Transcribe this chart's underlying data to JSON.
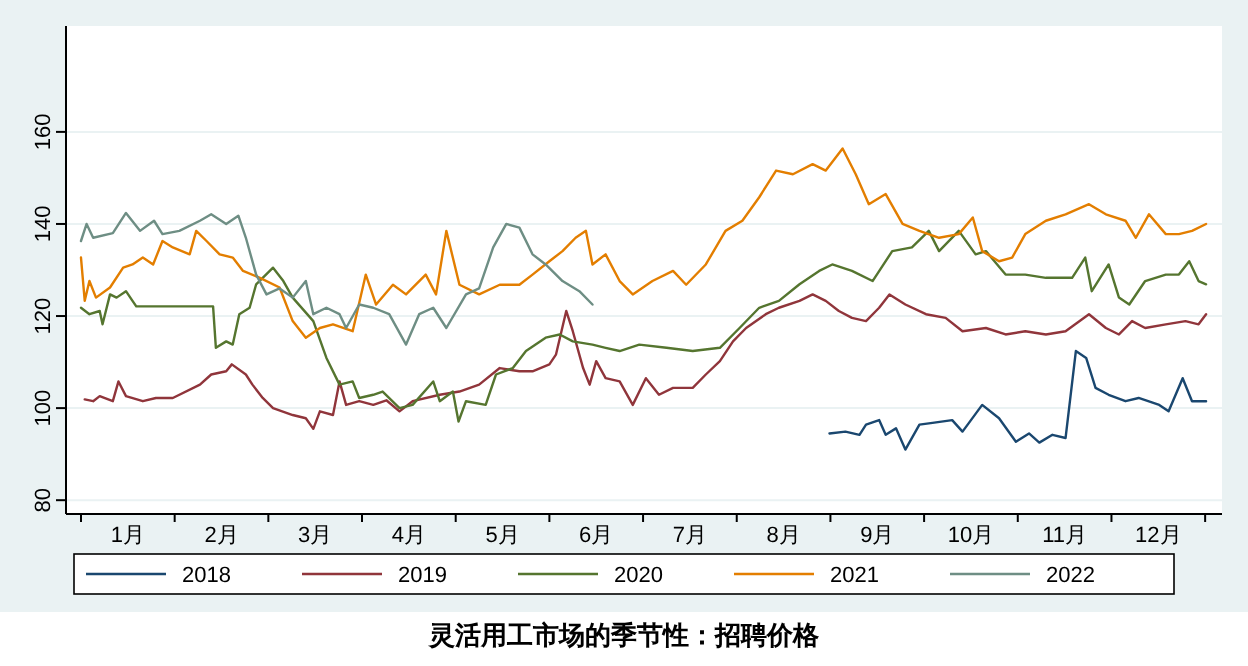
{
  "chart_data": {
    "type": "line",
    "title": "灵活用工市场的季节性：招聘价格",
    "xlim": [
      -0.16,
      12.18
    ],
    "ylim": [
      77,
      183
    ],
    "yticks": [
      80,
      100,
      120,
      140,
      160
    ],
    "xticks": [
      {
        "value": 0,
        "label": null
      },
      {
        "value": 1,
        "label": null
      },
      {
        "value": 2,
        "label": null
      },
      {
        "value": 3,
        "label": null
      },
      {
        "value": 4,
        "label": null
      },
      {
        "value": 5,
        "label": null
      },
      {
        "value": 6,
        "label": null
      },
      {
        "value": 7,
        "label": null
      },
      {
        "value": 8,
        "label": null
      },
      {
        "value": 9,
        "label": null
      },
      {
        "value": 10,
        "label": null
      },
      {
        "value": 11,
        "label": null
      },
      {
        "value": 12,
        "label": null
      },
      {
        "value": 0.5,
        "label": "1月"
      },
      {
        "value": 1.5,
        "label": "2月"
      },
      {
        "value": 2.5,
        "label": "3月"
      },
      {
        "value": 3.5,
        "label": "4月"
      },
      {
        "value": 4.5,
        "label": "5月"
      },
      {
        "value": 5.5,
        "label": "6月"
      },
      {
        "value": 6.5,
        "label": "7月"
      },
      {
        "value": 7.5,
        "label": "8月"
      },
      {
        "value": 8.5,
        "label": "9月"
      },
      {
        "value": 9.5,
        "label": "10月"
      },
      {
        "value": 10.5,
        "label": "11月"
      },
      {
        "value": 11.5,
        "label": "12月"
      }
    ],
    "grid": "y",
    "legend": "bottom",
    "line_style": "solid",
    "marker": "none",
    "series": [
      {
        "name": "2018",
        "color": "#1a476f",
        "x": [
          7.99,
          8.16,
          8.31,
          8.38,
          8.52,
          8.59,
          8.7,
          8.8,
          8.95,
          9.09,
          9.3,
          9.41,
          9.62,
          9.8,
          9.98,
          10.12,
          10.23,
          10.37,
          10.51,
          10.62,
          10.73,
          10.83,
          10.97,
          11.15,
          11.29,
          11.51,
          11.61,
          11.76,
          11.86,
          12.01
        ],
        "values": [
          94.5,
          94.9,
          94.2,
          96.4,
          97.4,
          94.2,
          95.6,
          91,
          96.4,
          96.8,
          97.4,
          94.9,
          100.7,
          97.8,
          92.7,
          94.5,
          92.5,
          94.2,
          93.5,
          112.4,
          110.9,
          104.4,
          102.9,
          101.5,
          102.2,
          100.7,
          99.3,
          106.5,
          101.5,
          101.5
        ]
      },
      {
        "name": "2019",
        "color": "#90353b",
        "x": [
          0.04,
          0.13,
          0.2,
          0.34,
          0.4,
          0.48,
          0.66,
          0.8,
          0.98,
          1.27,
          1.39,
          1.55,
          1.61,
          1.76,
          1.83,
          1.94,
          2.05,
          2.26,
          2.4,
          2.48,
          2.55,
          2.69,
          2.76,
          2.83,
          2.97,
          3.12,
          3.26,
          3.4,
          3.54,
          3.83,
          4.04,
          4.25,
          4.47,
          4.68,
          4.82,
          5.0,
          5.07,
          5.18,
          5.25,
          5.36,
          5.43,
          5.5,
          5.6,
          5.75,
          5.89,
          6.03,
          6.17,
          6.32,
          6.53,
          6.67,
          6.82,
          6.96,
          7.1,
          7.31,
          7.45,
          7.67,
          7.81,
          7.95,
          8.09,
          8.23,
          8.38,
          8.52,
          8.63,
          8.8,
          9.02,
          9.23,
          9.41,
          9.66,
          9.87,
          10.08,
          10.3,
          10.51,
          10.76,
          10.94,
          11.08,
          11.22,
          11.36,
          11.58,
          11.79,
          11.93,
          12.01
        ],
        "values": [
          101.9,
          101.5,
          102.6,
          101.5,
          105.8,
          102.6,
          101.5,
          102.2,
          102.2,
          105.1,
          107.3,
          108,
          109.5,
          107.3,
          105.1,
          102.2,
          100,
          98.5,
          97.8,
          95.5,
          99.3,
          98.5,
          105.8,
          100.7,
          101.5,
          100.7,
          101.7,
          99.3,
          101.5,
          102.9,
          103.6,
          105.1,
          108.7,
          108,
          108,
          109.5,
          111.6,
          121.1,
          116.7,
          108.7,
          105.1,
          110.2,
          106.5,
          105.8,
          100.7,
          106.5,
          102.9,
          104.4,
          104.4,
          107.3,
          110.2,
          114.5,
          117.4,
          120.4,
          121.8,
          123.3,
          124.7,
          123.3,
          121.1,
          119.6,
          118.9,
          121.8,
          124.7,
          122.5,
          120.4,
          119.6,
          116.7,
          117.4,
          116,
          116.7,
          116,
          116.7,
          120.4,
          117.4,
          116,
          118.9,
          117.4,
          118.2,
          118.9,
          118.2,
          120.4
        ]
      },
      {
        "name": "2020",
        "color": "#55752f",
        "x": [
          0,
          0.09,
          0.2,
          0.23,
          0.31,
          0.38,
          0.48,
          0.55,
          0.59,
          1.41,
          1.44,
          1.55,
          1.62,
          1.69,
          1.8,
          1.87,
          2.05,
          2.16,
          2.26,
          2.48,
          2.62,
          2.76,
          2.9,
          2.97,
          3.12,
          3.22,
          3.4,
          3.54,
          3.76,
          3.83,
          3.97,
          4.03,
          4.11,
          4.32,
          4.43,
          4.61,
          4.75,
          4.96,
          5.11,
          5.25,
          5.46,
          5.6,
          5.75,
          5.96,
          6.25,
          6.53,
          6.82,
          7.03,
          7.24,
          7.45,
          7.67,
          7.88,
          8.02,
          8.23,
          8.45,
          8.66,
          8.87,
          9.05,
          9.16,
          9.37,
          9.55,
          9.66,
          9.87,
          10.08,
          10.3,
          10.58,
          10.72,
          10.79,
          10.97,
          11.08,
          11.19,
          11.36,
          11.58,
          11.72,
          11.83,
          11.93,
          12.01
        ],
        "values": [
          121.8,
          120.4,
          121.1,
          118.2,
          124.7,
          124,
          125.4,
          123.3,
          122.1,
          122.1,
          113.1,
          114.5,
          113.8,
          120.4,
          121.8,
          126.9,
          130.5,
          127.6,
          124,
          118.9,
          110.9,
          105.1,
          105.8,
          102.2,
          102.9,
          103.6,
          100,
          100.7,
          105.8,
          101.5,
          103.6,
          97.1,
          101.5,
          100.7,
          107.3,
          108.7,
          112.4,
          115.3,
          116,
          114.5,
          113.8,
          113.1,
          112.4,
          113.8,
          113.1,
          112.4,
          113.1,
          117.4,
          121.8,
          123.3,
          126.9,
          129.8,
          131.2,
          129.8,
          127.6,
          134.1,
          134.9,
          138.5,
          134.1,
          138.5,
          133.4,
          134.1,
          129,
          129,
          128.3,
          128.3,
          132.7,
          125.4,
          131.2,
          124,
          122.5,
          127.6,
          129,
          129,
          131.9,
          127.6,
          126.9
        ]
      },
      {
        "name": "2021",
        "color": "#e37e00",
        "x": [
          0,
          0.04,
          0.09,
          0.16,
          0.31,
          0.45,
          0.55,
          0.66,
          0.77,
          0.87,
          0.98,
          1.16,
          1.23,
          1.34,
          1.48,
          1.62,
          1.73,
          1.91,
          2.12,
          2.26,
          2.4,
          2.55,
          2.69,
          2.9,
          3.04,
          3.15,
          3.33,
          3.47,
          3.68,
          3.79,
          3.9,
          4.04,
          4.25,
          4.47,
          4.68,
          4.82,
          5.0,
          5.14,
          5.28,
          5.39,
          5.46,
          5.6,
          5.75,
          5.89,
          6.1,
          6.32,
          6.46,
          6.67,
          6.88,
          7.06,
          7.24,
          7.42,
          7.6,
          7.81,
          7.95,
          8.13,
          8.27,
          8.41,
          8.59,
          8.77,
          8.95,
          9.16,
          9.37,
          9.52,
          9.62,
          9.8,
          9.94,
          10.08,
          10.3,
          10.51,
          10.76,
          10.94,
          11.15,
          11.26,
          11.4,
          11.58,
          11.72,
          11.86,
          12.01
        ],
        "values": [
          132.7,
          123.3,
          127.6,
          124,
          126.2,
          130.5,
          131.2,
          132.7,
          131.2,
          136.3,
          134.9,
          133.4,
          138.5,
          136.3,
          133.4,
          132.7,
          129.8,
          128.3,
          126.2,
          118.9,
          115.3,
          117.4,
          118.2,
          116.7,
          129,
          122.5,
          126.8,
          124.7,
          129,
          124.7,
          138.5,
          126.8,
          124.7,
          126.8,
          126.8,
          129,
          131.9,
          134.1,
          137,
          138.5,
          131.2,
          133.4,
          127.6,
          124.7,
          127.6,
          129.8,
          126.8,
          131.2,
          138.5,
          140.7,
          145.8,
          151.6,
          150.8,
          153,
          151.6,
          156.4,
          150.8,
          144.3,
          146.5,
          140,
          138.5,
          137,
          137.8,
          141.4,
          134.1,
          131.9,
          132.7,
          137.8,
          140.7,
          142.1,
          144.3,
          142.1,
          140.7,
          137,
          142.1,
          137.8,
          137.8,
          138.5,
          140
        ]
      },
      {
        "name": "2022",
        "color": "#6e8e84",
        "x": [
          0,
          0.06,
          0.13,
          0.34,
          0.48,
          0.63,
          0.78,
          0.87,
          1.05,
          1.27,
          1.39,
          1.55,
          1.68,
          1.76,
          1.87,
          1.98,
          2.12,
          2.26,
          2.4,
          2.48,
          2.62,
          2.76,
          2.83,
          2.97,
          3.12,
          3.29,
          3.47,
          3.61,
          3.76,
          3.9,
          4.11,
          4.25,
          4.4,
          4.54,
          4.68,
          4.82,
          4.96,
          5.14,
          5.32,
          5.46
        ],
        "values": [
          136.3,
          140,
          137,
          138,
          142.4,
          138.5,
          140.7,
          137.8,
          138.5,
          140.7,
          142.1,
          140,
          141.8,
          137,
          129,
          124.7,
          126,
          124,
          127.6,
          120.4,
          121.8,
          120.4,
          117.4,
          122.5,
          121.8,
          120.4,
          113.8,
          120.4,
          121.8,
          117.4,
          124.7,
          126,
          134.9,
          140,
          139.2,
          133.4,
          131.2,
          127.6,
          125.4,
          122.5
        ]
      }
    ]
  }
}
